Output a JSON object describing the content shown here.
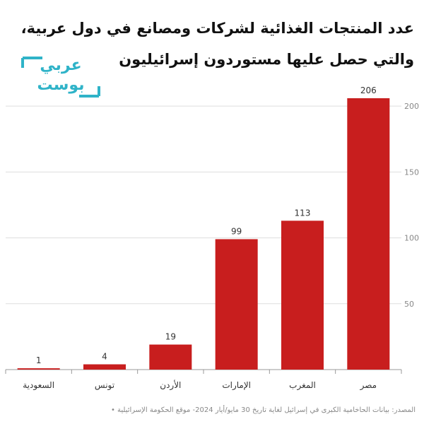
{
  "title": "عدد المنتجات الغذائية لشركات ومصانع في دول عربية، والتي حصل عليها مستوردون إسرائيليون",
  "logo": {
    "line1": "عربي",
    "line2": "بوست"
  },
  "source": "المصدر: بيانات الحاخامية الكبرى في إسرائيل لغاية تاريخ 30 مايو/أيار 2024- موقع الحكومة الإسرائيلية •",
  "colors": {
    "bar": "#c81e1e",
    "grid": "#dddddd",
    "text": "#333333",
    "tick": "#888888",
    "logo": "#2fb3c8"
  },
  "chart_data": {
    "type": "bar",
    "categories": [
      "السعودية",
      "تونس",
      "الأردن",
      "الإمارات",
      "المغرب",
      "مصر"
    ],
    "values": [
      1,
      4,
      19,
      99,
      113,
      206
    ],
    "ylim": [
      0,
      206
    ],
    "yticks": [
      50,
      100,
      150,
      200
    ],
    "y_axis_position": "right",
    "grid": true,
    "data_labels": true
  }
}
